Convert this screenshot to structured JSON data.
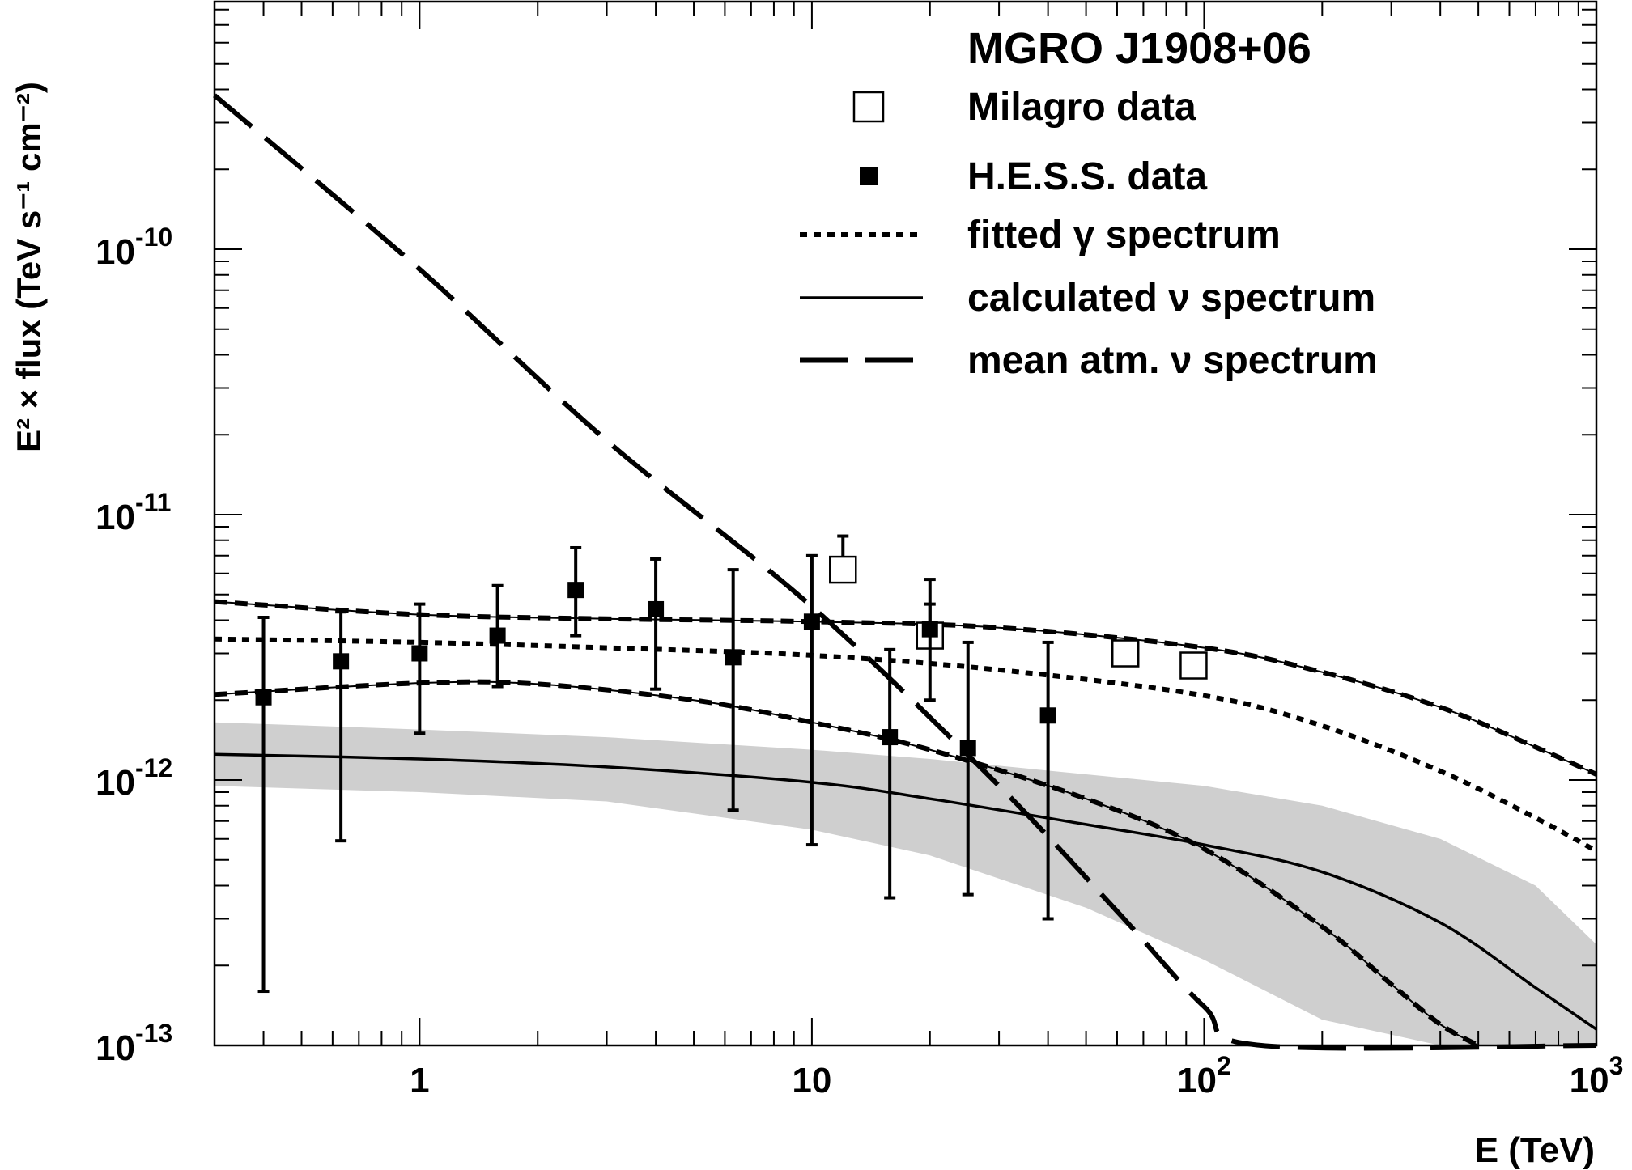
{
  "chart_data": {
    "type": "scatter",
    "title": "MGRO J1908+06",
    "xlabel": "E (TeV)",
    "ylabel": "E² × flux (TeV s⁻¹ cm⁻²)",
    "x_scale": "log",
    "y_scale": "log",
    "xlim": [
      0.3,
      1000
    ],
    "ylim": [
      1e-13,
      1e-09
    ],
    "grid": false,
    "legend_position": "top-right",
    "x_ticks": [
      {
        "label": "1",
        "value": 1
      },
      {
        "label": "10",
        "value": 10
      },
      {
        "label": "10",
        "sup": "2",
        "value": 100
      },
      {
        "label": "10",
        "sup": "3",
        "value": 1000
      }
    ],
    "y_ticks": [
      {
        "label": "10",
        "sup": "-10",
        "value": 1e-10
      },
      {
        "label": "10",
        "sup": "-11",
        "value": 1e-11
      },
      {
        "label": "10",
        "sup": "-12",
        "value": 1e-12
      },
      {
        "label": "10",
        "sup": "-13",
        "value": 1e-13
      }
    ],
    "series": [
      {
        "name": "Milagro data",
        "marker": "open-square",
        "points": [
          {
            "x": 12,
            "y": 6.2e-12,
            "yhi": 8.3e-12
          },
          {
            "x": 20,
            "y": 3.5e-12,
            "yhi": 5.7e-12
          },
          {
            "x": 63,
            "y": 3e-12
          },
          {
            "x": 94,
            "y": 2.7e-12
          }
        ]
      },
      {
        "name": "H.E.S.S. data",
        "marker": "filled-square",
        "points": [
          {
            "x": 0.4,
            "y": 2.05e-12,
            "ylo": 1.6e-13,
            "yhi": 4.1e-12
          },
          {
            "x": 0.63,
            "y": 2.8e-12,
            "ylo": 5.9e-13,
            "yhi": 4.3e-12
          },
          {
            "x": 1.0,
            "y": 3e-12,
            "ylo": 1.5e-12,
            "yhi": 4.6e-12
          },
          {
            "x": 1.58,
            "y": 3.5e-12,
            "ylo": 2.25e-12,
            "yhi": 5.4e-12
          },
          {
            "x": 2.5,
            "y": 5.2e-12,
            "ylo": 3.5e-12,
            "yhi": 7.5e-12
          },
          {
            "x": 4.0,
            "y": 4.4e-12,
            "ylo": 2.2e-12,
            "yhi": 6.8e-12
          },
          {
            "x": 6.3,
            "y": 2.9e-12,
            "ylo": 7.7e-13,
            "yhi": 6.2e-12
          },
          {
            "x": 10,
            "y": 3.95e-12,
            "ylo": 5.7e-13,
            "yhi": 7e-12
          },
          {
            "x": 15.8,
            "y": 1.45e-12,
            "ylo": 3.6e-13,
            "yhi": 3.1e-12
          },
          {
            "x": 20,
            "y": 3.7e-12,
            "ylo": 2e-12,
            "yhi": 4.6e-12
          },
          {
            "x": 25,
            "y": 1.32e-12,
            "ylo": 3.7e-13,
            "yhi": 3.3e-12
          },
          {
            "x": 40,
            "y": 1.75e-12,
            "ylo": 3e-13,
            "yhi": 3.3e-12
          }
        ]
      },
      {
        "name": "fitted γ spectrum",
        "style": "dotted",
        "x": [
          0.3,
          1,
          3,
          10,
          30,
          100,
          200,
          400,
          700,
          1000
        ],
        "y": [
          3.4e-12,
          3.3e-12,
          3.15e-12,
          2.95e-12,
          2.6e-12,
          2.08e-12,
          1.6e-12,
          1.08e-12,
          7.2e-13,
          5.4e-13
        ]
      },
      {
        "name": "fitted γ spectrum (upper band)",
        "style": "thin-with-dash",
        "x": [
          0.3,
          1,
          3,
          10,
          30,
          100,
          200,
          400,
          700,
          1000
        ],
        "y": [
          4.7e-12,
          4.2e-12,
          4.05e-12,
          3.95e-12,
          3.75e-12,
          3.15e-12,
          2.55e-12,
          1.88e-12,
          1.33e-12,
          1.05e-12
        ]
      },
      {
        "name": "fitted γ spectrum (lower band)",
        "style": "thin-with-dash",
        "x": [
          0.3,
          1,
          2,
          5,
          10,
          20,
          50,
          100,
          200,
          300,
          400,
          500
        ],
        "y": [
          2.1e-12,
          2.32e-12,
          2.3e-12,
          2e-12,
          1.65e-12,
          1.3e-12,
          8.5e-13,
          5.5e-13,
          2.8e-13,
          1.7e-13,
          1.2e-13,
          1e-13
        ]
      },
      {
        "name": "calculated ν spectrum",
        "style": "solid",
        "x": [
          0.3,
          1,
          3,
          10,
          20,
          50,
          100,
          200,
          400,
          700,
          1000
        ],
        "y": [
          1.25e-12,
          1.2e-12,
          1.12e-12,
          9.8e-13,
          8.5e-13,
          6.8e-13,
          5.7e-13,
          4.5e-13,
          2.9e-13,
          1.65e-13,
          1.15e-13
        ]
      },
      {
        "name": "calculated ν spectrum (uncertainty band)",
        "style": "gray-band",
        "x": [
          0.3,
          1,
          3,
          10,
          20,
          50,
          100,
          200,
          400,
          700,
          1000
        ],
        "upper": [
          1.65e-12,
          1.55e-12,
          1.45e-12,
          1.3e-12,
          1.2e-12,
          1.05e-12,
          9.5e-13,
          8e-13,
          6e-13,
          4e-13,
          2.4e-13
        ],
        "lower": [
          9.5e-13,
          9e-13,
          8.3e-13,
          6.5e-13,
          5.2e-13,
          3.3e-13,
          2.1e-13,
          1.25e-13,
          1e-13,
          1e-13,
          1e-13
        ]
      },
      {
        "name": "mean atm. ν spectrum",
        "style": "long-dash",
        "x": [
          0.3,
          1,
          3,
          10,
          30,
          60,
          100,
          140,
          1000
        ],
        "y": [
          3.8e-10,
          8.4e-11,
          1.9e-11,
          4.5e-12,
          9.5e-13,
          3.2e-13,
          1.4e-13,
          1e-13,
          1e-13
        ]
      }
    ]
  }
}
